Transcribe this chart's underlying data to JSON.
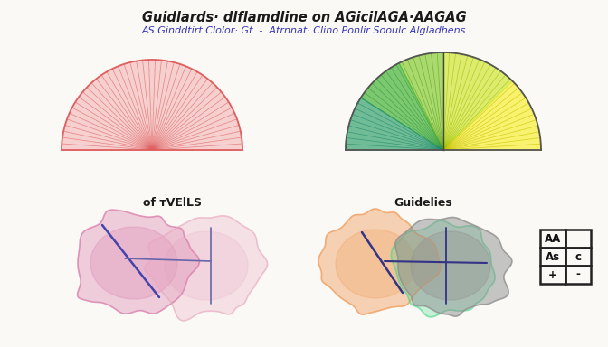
{
  "title": "Guidlards· dlflamdline on AGicilAGA·AAGAG",
  "subtitle": "AS Ginddtirt Clolor· Gt  -  Atrnnat· Clino Ponlir Sooulc Algladhens",
  "label_left": "of ᴛVElLS",
  "label_right": "Guidelies",
  "bg_color": "#faf9f6",
  "title_color": "#1a1a1a",
  "subtitle_color": "#3333bb",
  "left_fan_color": "#e06060",
  "left_fill_color": "#f0a0a0",
  "right_seg_colors": [
    "#f8f040",
    "#d4e840",
    "#90d040",
    "#50b840",
    "#40a878"
  ],
  "right_line_colors": [
    "#c8c000",
    "#a0c000",
    "#60a020",
    "#309840",
    "#208868"
  ],
  "blob_lp_color": "#d878a8",
  "blob_rp_color": "#e8a8c0",
  "blob_orange_color": "#f0a060",
  "blob_green_color": "#50d890",
  "blob_gray_color": "#909090"
}
